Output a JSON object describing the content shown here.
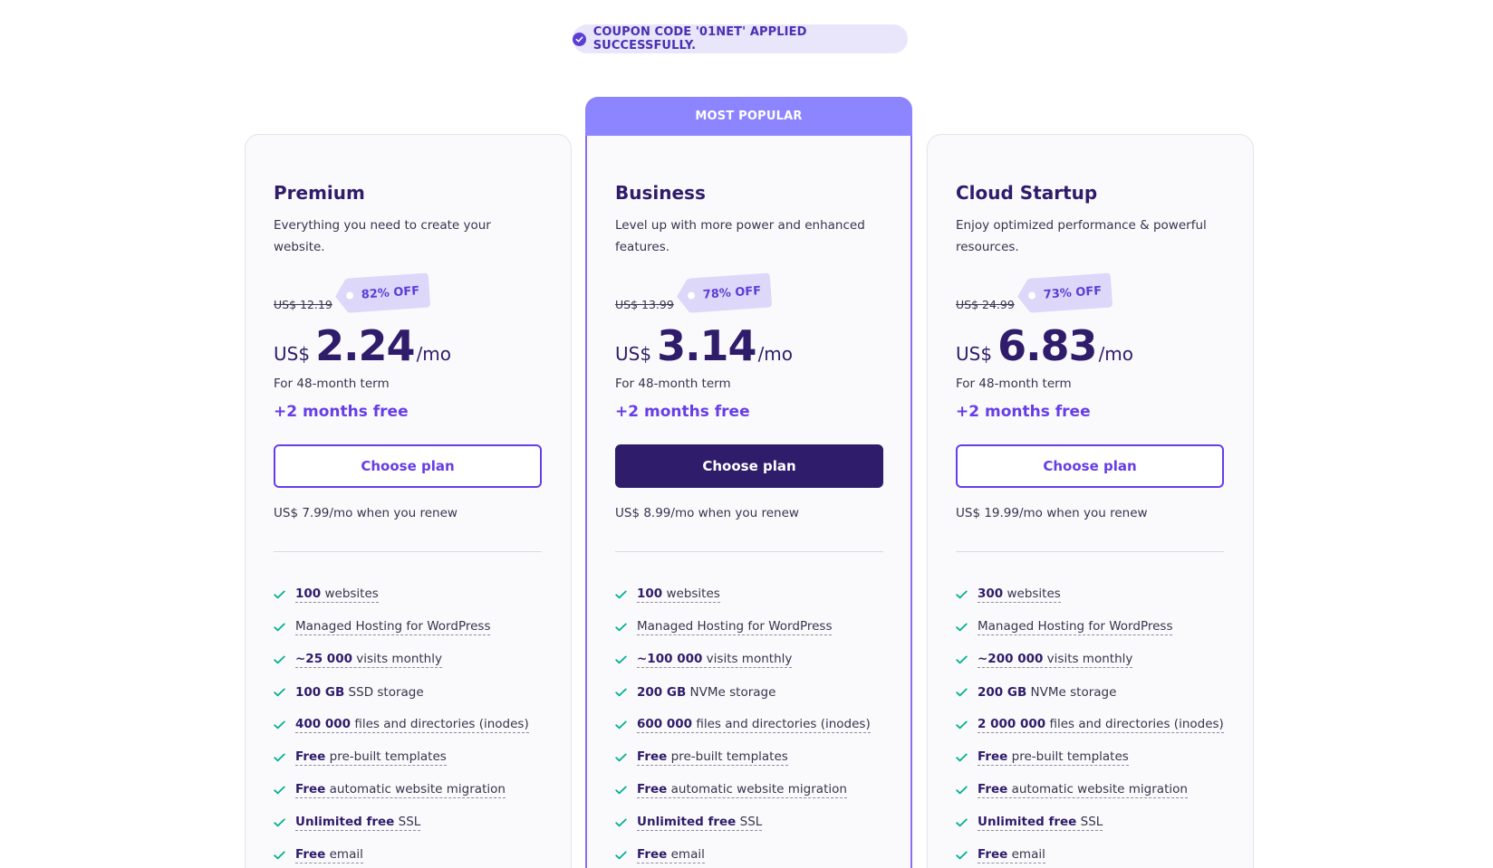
{
  "coupon": {
    "text": "COUPON CODE '01NET' APPLIED SUCCESSFULLY."
  },
  "colors": {
    "accent": "#673de6",
    "dark": "#2f1c6a",
    "popular_header": "#8c85ff",
    "check": "#00b090"
  },
  "plans": [
    {
      "name": "Premium",
      "description": "Everything you need to create your website.",
      "old_price": "US$ 12.19",
      "discount": "82% OFF",
      "currency": "US$",
      "price": "2.24",
      "period": "/mo",
      "term": "For 48-month term",
      "bonus": "+2 months free",
      "button": "Choose plan",
      "renew": "US$ 7.99/mo when you renew",
      "features": [
        {
          "bold": "100",
          "text": " websites"
        },
        {
          "bold": "",
          "text": "Managed Hosting for WordPress"
        },
        {
          "bold": "~25 000",
          "text": " visits monthly"
        },
        {
          "bold": "100 GB",
          "text": " SSD storage"
        },
        {
          "bold": "400 000",
          "text": " files and directories (inodes)"
        },
        {
          "bold": "Free",
          "text": " pre-built templates"
        },
        {
          "bold": "Free",
          "text": " automatic website migration"
        },
        {
          "bold": "Unlimited free",
          "text": " SSL"
        },
        {
          "bold": "Free",
          "text": " email"
        }
      ]
    },
    {
      "name": "Business",
      "badge": "MOST POPULAR",
      "description": "Level up with more power and enhanced features.",
      "old_price": "US$ 13.99",
      "discount": "78% OFF",
      "currency": "US$",
      "price": "3.14",
      "period": "/mo",
      "term": "For 48-month term",
      "bonus": "+2 months free",
      "button": "Choose plan",
      "renew": "US$ 8.99/mo when you renew",
      "features": [
        {
          "bold": "100",
          "text": " websites"
        },
        {
          "bold": "",
          "text": "Managed Hosting for WordPress"
        },
        {
          "bold": "~100 000",
          "text": " visits monthly"
        },
        {
          "bold": "200 GB",
          "text": " NVMe storage"
        },
        {
          "bold": "600 000",
          "text": " files and directories (inodes)"
        },
        {
          "bold": "Free",
          "text": " pre-built templates"
        },
        {
          "bold": "Free",
          "text": " automatic website migration"
        },
        {
          "bold": "Unlimited free",
          "text": " SSL"
        },
        {
          "bold": "Free",
          "text": " email"
        }
      ]
    },
    {
      "name": "Cloud Startup",
      "description": "Enjoy optimized performance & powerful resources.",
      "old_price": "US$ 24.99",
      "discount": "73% OFF",
      "currency": "US$",
      "price": "6.83",
      "period": "/mo",
      "term": "For 48-month term",
      "bonus": "+2 months free",
      "button": "Choose plan",
      "renew": "US$ 19.99/mo when you renew",
      "features": [
        {
          "bold": "300",
          "text": " websites"
        },
        {
          "bold": "",
          "text": "Managed Hosting for WordPress"
        },
        {
          "bold": "~200 000",
          "text": " visits monthly"
        },
        {
          "bold": "200 GB",
          "text": " NVMe storage"
        },
        {
          "bold": "2 000 000",
          "text": " files and directories (inodes)"
        },
        {
          "bold": "Free",
          "text": " pre-built templates"
        },
        {
          "bold": "Free",
          "text": " automatic website migration"
        },
        {
          "bold": "Unlimited free",
          "text": " SSL"
        },
        {
          "bold": "Free",
          "text": " email"
        }
      ]
    }
  ]
}
